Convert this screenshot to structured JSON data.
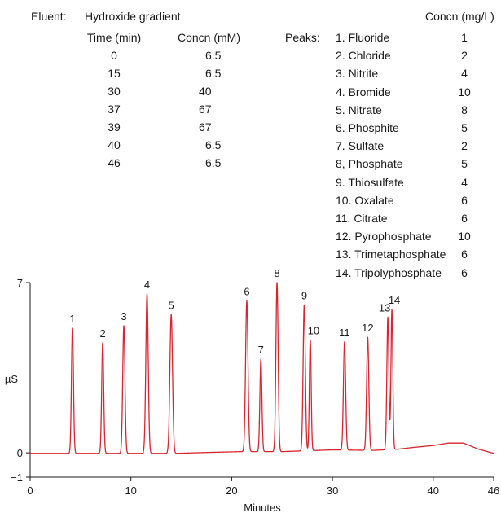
{
  "eluent": {
    "label": "Eluent:",
    "name": "Hydroxide gradient",
    "time_header": "Time (min)",
    "concn_header": "Concn (mM)",
    "rows": [
      {
        "time": "0",
        "concn": "6.5"
      },
      {
        "time": "15",
        "concn": "6.5"
      },
      {
        "time": "30",
        "concn": "40"
      },
      {
        "time": "37",
        "concn": "67"
      },
      {
        "time": "39",
        "concn": "67"
      },
      {
        "time": "40",
        "concn": "6.5"
      },
      {
        "time": "46",
        "concn": "6.5"
      }
    ]
  },
  "peaks_table": {
    "label": "Peaks:",
    "concn_header": "Concn (mg/L)",
    "items": [
      {
        "name": "1. Fluoride",
        "concn": "1"
      },
      {
        "name": "2. Chloride",
        "concn": "2"
      },
      {
        "name": "3. Nitrite",
        "concn": "4"
      },
      {
        "name": "4. Bromide",
        "concn": "10"
      },
      {
        "name": "5. Nitrate",
        "concn": "8"
      },
      {
        "name": "6. Phosphite",
        "concn": "5"
      },
      {
        "name": "7. Sulfate",
        "concn": "2"
      },
      {
        "name": "8, Phosphate",
        "concn": "5"
      },
      {
        "name": "9. Thiosulfate",
        "concn": "4"
      },
      {
        "name": "10. Oxalate",
        "concn": "6"
      },
      {
        "name": "11. Citrate",
        "concn": "6"
      },
      {
        "name": "12. Pyrophosphate",
        "concn": "10"
      },
      {
        "name": "13. Trimetaphosphate",
        "concn": "6"
      },
      {
        "name": "14. Tripolyphosphate",
        "concn": "6"
      }
    ]
  },
  "chart_data": {
    "type": "line",
    "xlabel": "Minutes",
    "ylabel": "µS",
    "xlim": [
      0,
      46
    ],
    "ylim": [
      -1,
      7
    ],
    "xticks": [
      0,
      10,
      20,
      30,
      40,
      46
    ],
    "yticks": [
      -1,
      0,
      7
    ],
    "line_color": "#d9262e",
    "axis_color": "#1a1a1a",
    "baseline": [
      [
        0,
        -0.02
      ],
      [
        14.5,
        -0.02
      ],
      [
        18,
        0.02
      ],
      [
        21,
        0.05
      ],
      [
        25,
        0.05
      ],
      [
        30,
        0.12
      ],
      [
        34,
        0.1
      ],
      [
        36.5,
        0.15
      ],
      [
        38,
        0.22
      ],
      [
        40,
        0.3
      ],
      [
        41.5,
        0.4
      ],
      [
        43,
        0.4
      ],
      [
        44.5,
        0.15
      ],
      [
        46,
        -0.02
      ]
    ],
    "peaks": [
      {
        "label": "1",
        "rt": 4.2,
        "height": 5.15,
        "width": 0.1
      },
      {
        "label": "2",
        "rt": 7.2,
        "height": 4.55,
        "width": 0.1
      },
      {
        "label": "3",
        "rt": 9.3,
        "height": 5.25,
        "width": 0.11
      },
      {
        "label": "4",
        "rt": 11.6,
        "height": 6.55,
        "width": 0.12
      },
      {
        "label": "5",
        "rt": 14.0,
        "height": 5.7,
        "width": 0.13
      },
      {
        "label": "6",
        "rt": 21.5,
        "height": 6.2,
        "width": 0.12
      },
      {
        "label": "7",
        "rt": 22.9,
        "height": 3.8,
        "width": 0.1
      },
      {
        "label": "8",
        "rt": 24.5,
        "height": 6.95,
        "width": 0.11
      },
      {
        "label": "9",
        "rt": 27.2,
        "height": 6.0,
        "width": 0.11
      },
      {
        "label": "10",
        "rt": 27.8,
        "height": 4.55,
        "width": 0.09
      },
      {
        "label": "11",
        "rt": 31.2,
        "height": 4.45,
        "width": 0.11
      },
      {
        "label": "12",
        "rt": 33.5,
        "height": 4.65,
        "width": 0.11
      },
      {
        "label": "13",
        "rt": 35.5,
        "height": 5.45,
        "width": 0.1
      },
      {
        "label": "14",
        "rt": 35.9,
        "height": 5.75,
        "width": 0.09
      }
    ]
  }
}
